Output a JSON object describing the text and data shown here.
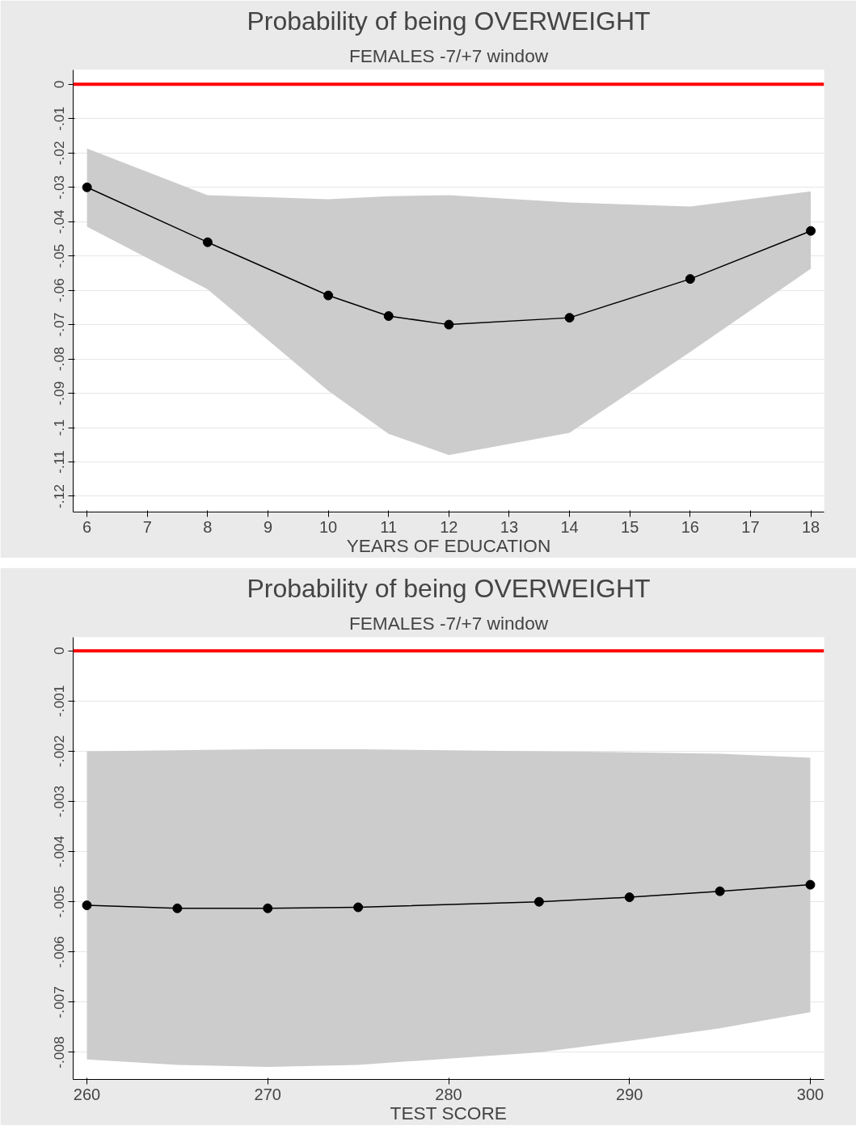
{
  "chart_data": [
    {
      "type": "line",
      "title": "Probability of being OVERWEIGHT",
      "subtitle": "FEMALES -7/+7 window",
      "xlabel": "YEARS OF EDUCATION",
      "x": [
        6,
        8,
        10,
        11,
        12,
        14,
        16,
        18
      ],
      "series": [
        {
          "color": "#000000",
          "values": [
            -0.03,
            -0.046,
            -0.0615,
            -0.0675,
            -0.07,
            -0.068,
            -0.0567,
            -0.0427
          ],
          "lower": [
            -0.0415,
            -0.0597,
            -0.0893,
            -0.1018,
            -0.108,
            -0.1015,
            -0.078,
            -0.0537
          ],
          "upper": [
            -0.0187,
            -0.0323,
            -0.0335,
            -0.0326,
            -0.0323,
            -0.0344,
            -0.0356,
            -0.0312
          ]
        }
      ],
      "xlim": [
        5.77,
        18.22
      ],
      "ylim": [
        -0.1246,
        0.0042
      ],
      "xticks": [
        6,
        7,
        8,
        9,
        10,
        11,
        12,
        13,
        14,
        15,
        16,
        17,
        18
      ],
      "yticks": [
        {
          "value": 0,
          "label": "0"
        },
        {
          "value": -0.01,
          "label": "-.01"
        },
        {
          "value": -0.02,
          "label": "-.02"
        },
        {
          "value": -0.03,
          "label": "-.03"
        },
        {
          "value": -0.04,
          "label": "-.04"
        },
        {
          "value": -0.05,
          "label": "-.05"
        },
        {
          "value": -0.06,
          "label": "-.06"
        },
        {
          "value": -0.07,
          "label": "-.07"
        },
        {
          "value": -0.08,
          "label": "-.08"
        },
        {
          "value": -0.09,
          "label": "-.09"
        },
        {
          "value": -0.1,
          "label": "-.1"
        },
        {
          "value": -0.11,
          "label": "-.11"
        },
        {
          "value": -0.12,
          "label": "-.12"
        }
      ],
      "ref_lines": [
        {
          "axis": "y",
          "value": 0,
          "color": "#ff0000"
        }
      ],
      "grid": "y",
      "marker": "circle",
      "line_style": "solid"
    },
    {
      "type": "line",
      "title": "Probability of being OVERWEIGHT",
      "subtitle": "FEMALES -7/+7 window",
      "xlabel": "TEST SCORE",
      "x": [
        260,
        265,
        270,
        275,
        285,
        290,
        295,
        300
      ],
      "series": [
        {
          "color": "#000000",
          "values": [
            -0.00507,
            -0.00513,
            -0.00513,
            -0.00511,
            -0.005,
            -0.00491,
            -0.00479,
            -0.00466
          ],
          "lower": [
            -0.00814,
            -0.00825,
            -0.00829,
            -0.00825,
            -0.008,
            -0.00777,
            -0.00752,
            -0.0072
          ],
          "upper": [
            -0.002,
            -0.00198,
            -0.00196,
            -0.00196,
            -0.002,
            -0.00202,
            -0.00205,
            -0.00213
          ]
        }
      ],
      "xlim": [
        259.24,
        300.76
      ],
      "ylim": [
        -0.00854,
        0.00027
      ],
      "xticks": [
        260,
        270,
        280,
        290,
        300
      ],
      "yticks": [
        {
          "value": 0,
          "label": "0"
        },
        {
          "value": -0.001,
          "label": "-.001"
        },
        {
          "value": -0.002,
          "label": "-.002"
        },
        {
          "value": -0.003,
          "label": "-.003"
        },
        {
          "value": -0.004,
          "label": "-.004"
        },
        {
          "value": -0.005,
          "label": "-.005"
        },
        {
          "value": -0.006,
          "label": "-.006"
        },
        {
          "value": -0.007,
          "label": "-.007"
        },
        {
          "value": -0.008,
          "label": "-.008"
        }
      ],
      "ref_lines": [
        {
          "axis": "y",
          "value": 0,
          "color": "#ff0000"
        }
      ],
      "grid": "y",
      "marker": "circle",
      "line_style": "solid"
    }
  ]
}
